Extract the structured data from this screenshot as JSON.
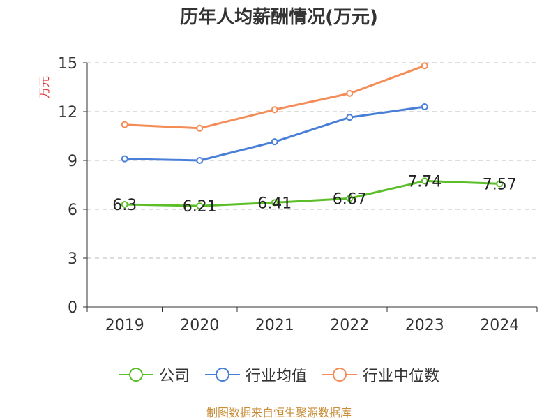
{
  "chart_data": {
    "type": "line",
    "title": "历年人均薪酬情况(万元)",
    "ylabel": "万元",
    "xlabel": "",
    "categories": [
      "2019",
      "2020",
      "2021",
      "2022",
      "2023",
      "2024"
    ],
    "ylim": [
      0,
      15
    ],
    "yticks": [
      0,
      3,
      6,
      9,
      12,
      15
    ],
    "grid": true,
    "legend_position": "bottom",
    "series": [
      {
        "name": "公司",
        "values": [
          6.3,
          6.21,
          6.41,
          6.67,
          7.74,
          7.57
        ],
        "labels": [
          "6.3",
          "6.21",
          "6.41",
          "6.67",
          "7.74",
          "7.57"
        ],
        "color": "#5cbf2a"
      },
      {
        "name": "行业均值",
        "values": [
          9.1,
          9.0,
          10.15,
          11.65,
          12.3,
          null
        ],
        "color": "#4a7fd8"
      },
      {
        "name": "行业中位数",
        "values": [
          11.2,
          10.98,
          12.12,
          13.12,
          14.82,
          null
        ],
        "color": "#f48c57"
      }
    ]
  },
  "source_note": "制图数据来自恒生聚源数据库"
}
